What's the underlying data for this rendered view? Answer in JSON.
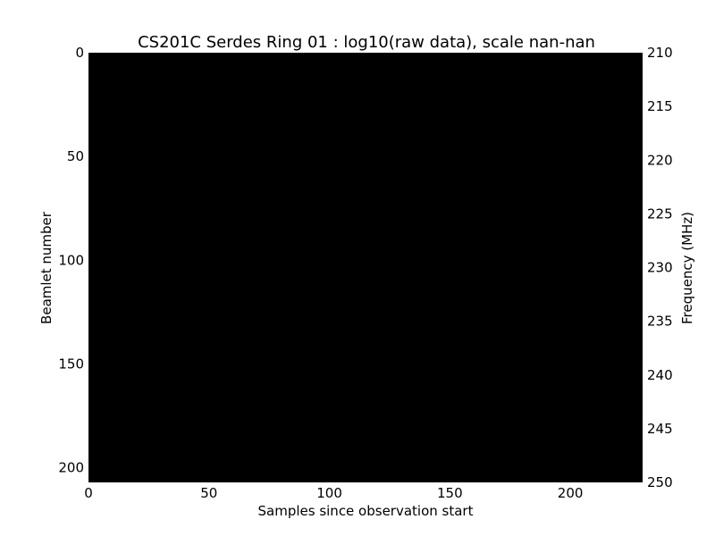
{
  "chart_data": {
    "type": "heatmap",
    "title": "CS201C Serdes Ring 01 : log10(raw data), scale nan-nan",
    "xlabel": "Samples since observation start",
    "ylabel": "Beamlet number",
    "ylabel_right": "Frequency (MHz)",
    "xlim": [
      0,
      230
    ],
    "ylim": [
      0,
      207
    ],
    "ylim_right": [
      210,
      250
    ],
    "y_inverted": true,
    "xticks": [
      0,
      50,
      100,
      150,
      200
    ],
    "yticks": [
      0,
      50,
      100,
      150,
      200
    ],
    "yticks_right": [
      210,
      215,
      220,
      225,
      230,
      235,
      240,
      245,
      250
    ],
    "fill_color": "#000000",
    "values": "nan",
    "grid": false
  }
}
